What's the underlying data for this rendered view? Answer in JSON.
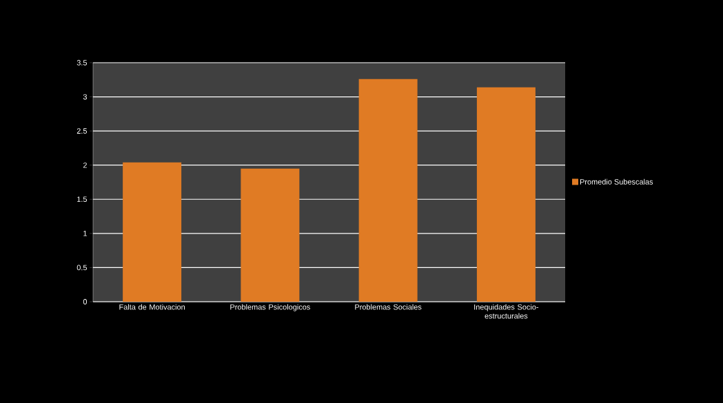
{
  "chart_data": {
    "type": "bar",
    "categories": [
      "Falta de Motivacion",
      "Problemas Psicologicos",
      "Problemas Sociales",
      "Inequidades  Socio-estructurales"
    ],
    "series": [
      {
        "name": "Promedio Subescalas",
        "color": "#e07b24",
        "values": [
          2.04,
          1.95,
          3.26,
          3.14
        ]
      }
    ],
    "ylim": [
      0,
      3.5
    ],
    "yticks": [
      0,
      0.5,
      1,
      1.5,
      2,
      2.5,
      3,
      3.5
    ],
    "grid": "y",
    "legend": "right"
  }
}
